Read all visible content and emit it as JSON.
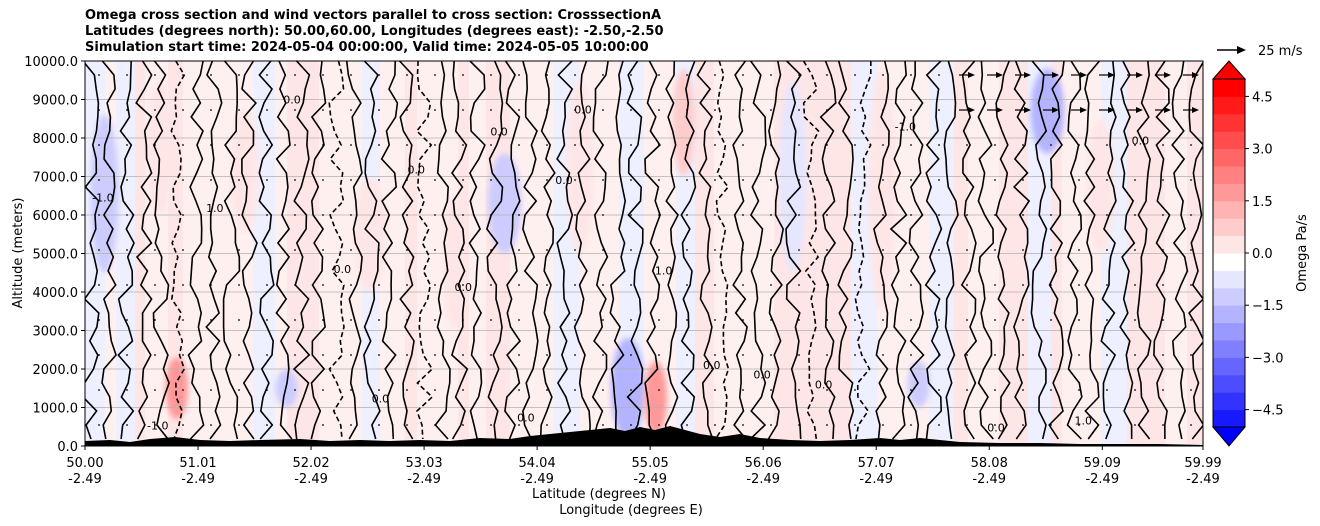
{
  "chart_data": {
    "type": "heatmap",
    "title_lines": [
      "Omega cross section and wind vectors parallel to cross section: CrosssectionA",
      "Latitudes (degrees north): 50.00,60.00, Longitudes (degrees east): -2.50,-2.50",
      "Simulation start time: 2024-05-04 00:00:00, Valid time: 2024-05-05 10:00:00"
    ],
    "xlabel_lines": [
      "Latitude (degrees N)",
      "Longitude (degrees E)"
    ],
    "ylabel": "Altitude (meters)",
    "x_ticks": [
      {
        "lat": "50.00",
        "lon": "-2.49",
        "value": 50.0
      },
      {
        "lat": "51.01",
        "lon": "-2.49",
        "value": 51.01
      },
      {
        "lat": "52.02",
        "lon": "-2.49",
        "value": 52.02
      },
      {
        "lat": "53.03",
        "lon": "-2.49",
        "value": 53.03
      },
      {
        "lat": "54.04",
        "lon": "-2.49",
        "value": 54.04
      },
      {
        "lat": "55.05",
        "lon": "-2.49",
        "value": 55.05
      },
      {
        "lat": "56.06",
        "lon": "-2.49",
        "value": 56.06
      },
      {
        "lat": "57.07",
        "lon": "-2.49",
        "value": 57.07
      },
      {
        "lat": "58.08",
        "lon": "-2.49",
        "value": 58.08
      },
      {
        "lat": "59.09",
        "lon": "-2.49",
        "value": 59.09
      },
      {
        "lat": "59.99",
        "lon": "-2.49",
        "value": 59.99
      }
    ],
    "y_ticks": [
      {
        "label": "0.0",
        "value": 0
      },
      {
        "label": "1000.0",
        "value": 1000
      },
      {
        "label": "2000.0",
        "value": 2000
      },
      {
        "label": "3000.0",
        "value": 3000
      },
      {
        "label": "4000.0",
        "value": 4000
      },
      {
        "label": "5000.0",
        "value": 5000
      },
      {
        "label": "6000.0",
        "value": 6000
      },
      {
        "label": "7000.0",
        "value": 7000
      },
      {
        "label": "8000.0",
        "value": 8000
      },
      {
        "label": "9000.0",
        "value": 9000
      },
      {
        "label": "10000.0",
        "value": 10000
      }
    ],
    "xlim": [
      50.0,
      59.99
    ],
    "ylim": [
      0,
      10000
    ],
    "grid": "horizontal",
    "colorbar": {
      "label": "Omega Pa/s",
      "range": [
        -5.0,
        5.0
      ],
      "tick_values": [
        4.5,
        3.0,
        1.5,
        0.0,
        -1.5,
        -3.0,
        -4.5
      ],
      "tick_labels": [
        "4.5",
        "3.0",
        "1.5",
        "0.0",
        "−1.5",
        "−3.0",
        "−4.5"
      ],
      "extend": "both",
      "low_color": "#0000ff",
      "mid_color": "#ffffff",
      "high_color": "#ff0000"
    },
    "quiver_key": {
      "label": "25 m/s",
      "speed": 25
    },
    "omega_bands": [
      {
        "x0": 50.05,
        "x1": 50.3,
        "y0": 4500,
        "y1": 8600,
        "v": -0.9
      },
      {
        "x0": 50.55,
        "x1": 50.8,
        "y0": 6000,
        "y1": 9500,
        "v": 0.5
      },
      {
        "x0": 50.72,
        "x1": 50.92,
        "y0": 700,
        "y1": 2300,
        "v": 2.0
      },
      {
        "x0": 51.3,
        "x1": 51.55,
        "y0": 5500,
        "y1": 8800,
        "v": 0.6
      },
      {
        "x0": 51.7,
        "x1": 51.9,
        "y0": 1000,
        "y1": 2000,
        "v": -1.0
      },
      {
        "x0": 52.4,
        "x1": 52.7,
        "y0": 4000,
        "y1": 7000,
        "v": 0.4
      },
      {
        "x0": 53.2,
        "x1": 53.4,
        "y0": 3000,
        "y1": 6500,
        "v": 0.4
      },
      {
        "x0": 53.6,
        "x1": 53.9,
        "y0": 5000,
        "y1": 7600,
        "v": -1.2
      },
      {
        "x0": 54.3,
        "x1": 54.55,
        "y0": 5000,
        "y1": 9500,
        "v": 0.5
      },
      {
        "x0": 54.7,
        "x1": 55.0,
        "y0": 200,
        "y1": 2800,
        "v": -1.4
      },
      {
        "x0": 55.0,
        "x1": 55.2,
        "y0": 300,
        "y1": 2200,
        "v": 2.2
      },
      {
        "x0": 55.25,
        "x1": 55.45,
        "y0": 7000,
        "y1": 9800,
        "v": 0.9
      },
      {
        "x0": 56.2,
        "x1": 56.45,
        "y0": 4500,
        "y1": 9500,
        "v": -0.6
      },
      {
        "x0": 57.0,
        "x1": 57.25,
        "y0": 3500,
        "y1": 9800,
        "v": 0.5
      },
      {
        "x0": 57.35,
        "x1": 57.55,
        "y0": 1000,
        "y1": 2200,
        "v": -1.0
      },
      {
        "x0": 58.45,
        "x1": 58.75,
        "y0": 7600,
        "y1": 9800,
        "v": -1.6
      },
      {
        "x0": 58.95,
        "x1": 59.2,
        "y0": 5000,
        "y1": 8500,
        "v": 0.5
      },
      {
        "x0": 59.4,
        "x1": 59.6,
        "y0": 400,
        "y1": 1500,
        "v": 0.6
      }
    ],
    "contour_labels": [
      {
        "x": 50.16,
        "y": 6350,
        "text": "-1.0"
      },
      {
        "x": 50.65,
        "y": 430,
        "text": "-1.0"
      },
      {
        "x": 51.16,
        "y": 6080,
        "text": "1.0"
      },
      {
        "x": 51.85,
        "y": 8900,
        "text": "0.0"
      },
      {
        "x": 52.3,
        "y": 4500,
        "text": "0.0"
      },
      {
        "x": 52.64,
        "y": 1130,
        "text": "0.0"
      },
      {
        "x": 52.96,
        "y": 7080,
        "text": "0.0"
      },
      {
        "x": 53.38,
        "y": 4030,
        "text": "0.0"
      },
      {
        "x": 53.7,
        "y": 8060,
        "text": "0.0"
      },
      {
        "x": 53.94,
        "y": 630,
        "text": "0.0"
      },
      {
        "x": 54.28,
        "y": 6800,
        "text": "0.0"
      },
      {
        "x": 54.45,
        "y": 8630,
        "text": "0.0"
      },
      {
        "x": 55.17,
        "y": 4450,
        "text": "1.0"
      },
      {
        "x": 55.6,
        "y": 2000,
        "text": "0.0"
      },
      {
        "x": 56.05,
        "y": 1750,
        "text": "0.0"
      },
      {
        "x": 56.6,
        "y": 1500,
        "text": "0.0"
      },
      {
        "x": 57.33,
        "y": 8200,
        "text": "-1.0"
      },
      {
        "x": 58.14,
        "y": 380,
        "text": "0.0"
      },
      {
        "x": 58.92,
        "y": 560,
        "text": "1.0"
      },
      {
        "x": 59.43,
        "y": 7830,
        "text": "0.0"
      }
    ]
  }
}
